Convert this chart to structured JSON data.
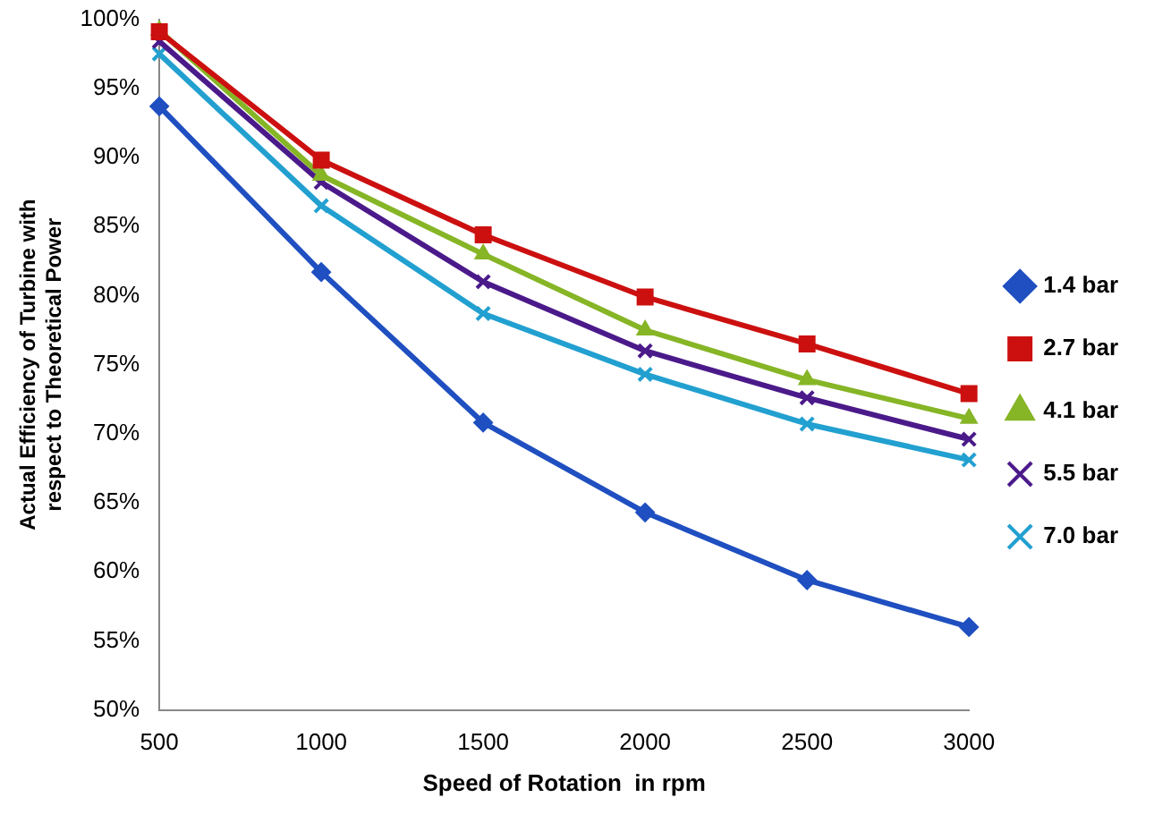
{
  "chart_data": {
    "type": "line",
    "xlabel": "Speed of Rotation  in rpm",
    "ylabel": "Actual Efficiency of Turbine with respect to Theoretical Power",
    "categories": [
      "500",
      "1000",
      "1500",
      "2000",
      "2500",
      "3000"
    ],
    "ylim": [
      50,
      100
    ],
    "yticks": [
      {
        "value": 50,
        "label": "50%"
      },
      {
        "value": 55,
        "label": "55%"
      },
      {
        "value": 60,
        "label": "60%"
      },
      {
        "value": 65,
        "label": "65%"
      },
      {
        "value": 70,
        "label": "70%"
      },
      {
        "value": 75,
        "label": "75%"
      },
      {
        "value": 80,
        "label": "80%"
      },
      {
        "value": 85,
        "label": "85%"
      },
      {
        "value": 90,
        "label": "90%"
      },
      {
        "value": 95,
        "label": "95%"
      },
      {
        "value": 100,
        "label": "100%"
      }
    ],
    "grid": false,
    "legend": "right",
    "line_style": "solid",
    "series": [
      {
        "name": "1.4 bar",
        "color": "#1f4fc0",
        "marker": "diamond",
        "values": [
          93.7,
          81.7,
          70.8,
          64.3,
          59.4,
          56.0
        ]
      },
      {
        "name": "2.7 bar",
        "color": "#cc1010",
        "marker": "square",
        "values": [
          99.1,
          89.8,
          84.4,
          79.9,
          76.5,
          72.9
        ]
      },
      {
        "name": "4.1 bar",
        "color": "#86b526",
        "marker": "triangle",
        "values": [
          99.2,
          88.7,
          83.0,
          77.5,
          73.9,
          71.1
        ]
      },
      {
        "name": "5.5 bar",
        "color": "#4b1a8a",
        "marker": "cross",
        "values": [
          98.4,
          88.2,
          81.0,
          76.0,
          72.6,
          69.6
        ]
      },
      {
        "name": "7.0 bar",
        "color": "#22a0d0",
        "marker": "cross",
        "values": [
          97.5,
          86.5,
          78.7,
          74.3,
          70.7,
          68.1
        ]
      }
    ]
  }
}
